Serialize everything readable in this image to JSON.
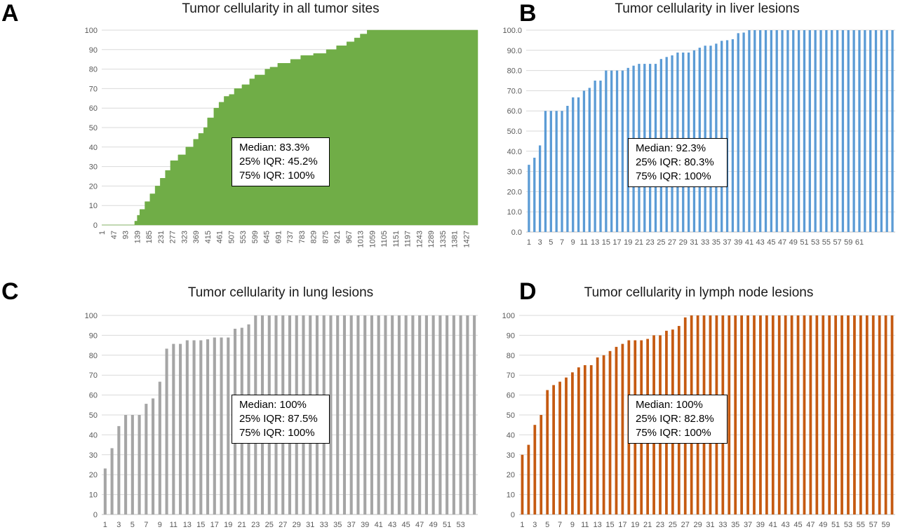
{
  "panels": {
    "a": {
      "letter": "A",
      "stats": {
        "median": "Median: 83.3%",
        "q25": "25% IQR: 45.2%",
        "q75": "75% IQR: 100%"
      }
    },
    "b": {
      "letter": "B",
      "stats": {
        "median": "Median: 92.3%",
        "q25": "25% IQR: 80.3%",
        "q75": "75% IQR: 100%"
      }
    },
    "c": {
      "letter": "C",
      "stats": {
        "median": "Median: 100%",
        "q25": "25% IQR: 87.5%",
        "q75": "75% IQR: 100%"
      }
    },
    "d": {
      "letter": "D",
      "stats": {
        "median": "Median: 100%",
        "q25": "25% IQR: 82.8%",
        "q75": "75% IQR: 100%"
      }
    }
  },
  "chart_data": [
    {
      "type": "area",
      "title": "Tumor cellularity in all tumor sites",
      "xlabel": "",
      "ylabel": "",
      "ylim": [
        0,
        100
      ],
      "y_ticks": [
        0,
        10,
        20,
        30,
        40,
        50,
        60,
        70,
        80,
        90,
        100
      ],
      "y_tick_labels": [
        "0",
        "10",
        "20",
        "30",
        "40",
        "50",
        "60",
        "70",
        "80",
        "90",
        "100"
      ],
      "x_range": [
        1,
        1473
      ],
      "x_tick_labels": [
        "1",
        "47",
        "93",
        "139",
        "185",
        "231",
        "277",
        "323",
        "369",
        "415",
        "461",
        "507",
        "553",
        "599",
        "645",
        "691",
        "737",
        "783",
        "829",
        "875",
        "921",
        "967",
        "1013",
        "1059",
        "1105",
        "1151",
        "1197",
        "1243",
        "1289",
        "1335",
        "1381",
        "1427"
      ],
      "color": "#70ad47",
      "grid": true,
      "series": [
        {
          "x": [
            1,
            125,
            130,
            140,
            150,
            170,
            190,
            210,
            230,
            250,
            270,
            300,
            330,
            360,
            380,
            400,
            415,
            440,
            460,
            480,
            500,
            520,
            550,
            580,
            600,
            640,
            660,
            690,
            740,
            780,
            830,
            880,
            920,
            960,
            990,
            1013,
            1040,
            1473
          ],
          "values": [
            0,
            0,
            2,
            5,
            8,
            12,
            16,
            20,
            24,
            28,
            33,
            36,
            40,
            44,
            47,
            50,
            55,
            60,
            63,
            66,
            67,
            70,
            72,
            75,
            77,
            80,
            81,
            83,
            85,
            87,
            88,
            90,
            92,
            94,
            96,
            98,
            100,
            100
          ]
        }
      ]
    },
    {
      "type": "bar",
      "title": "Tumor cellularity in liver lesions",
      "xlabel": "",
      "ylabel": "",
      "ylim": [
        0,
        100
      ],
      "y_ticks": [
        0,
        10,
        20,
        30,
        40,
        50,
        60,
        70,
        80,
        90,
        100
      ],
      "y_tick_labels": [
        "0.0",
        "10.0",
        "20.0",
        "30.0",
        "40.0",
        "50.0",
        "60.0",
        "70.0",
        "80.0",
        "90.0",
        "100.0"
      ],
      "x_tick_labels": [
        "1",
        "3",
        "5",
        "7",
        "9",
        "11",
        "13",
        "15",
        "17",
        "19",
        "21",
        "23",
        "25",
        "27",
        "29",
        "31",
        "33",
        "35",
        "37",
        "39",
        "41",
        "43",
        "45",
        "47",
        "49",
        "51",
        "53",
        "55",
        "57",
        "59",
        "61"
      ],
      "color": "#5b9bd5",
      "grid": true,
      "values": [
        33.3,
        36.8,
        42.9,
        60,
        60,
        60,
        60,
        62.5,
        66.7,
        66.7,
        70,
        71.4,
        75,
        75,
        80,
        80,
        80,
        80,
        81.3,
        82.4,
        83.3,
        83.3,
        83.3,
        83.3,
        85.7,
        86.7,
        87.5,
        88.9,
        88.9,
        88.9,
        90,
        91.3,
        92.3,
        92.3,
        93.3,
        94.7,
        95,
        95.5,
        98.5,
        98.8,
        100,
        100,
        100,
        100,
        100,
        100,
        100,
        100,
        100,
        100,
        100,
        100,
        100,
        100,
        100,
        100,
        100,
        100,
        100,
        100,
        100,
        100,
        100,
        100,
        100,
        100,
        100
      ]
    },
    {
      "type": "bar",
      "title": "Tumor cellularity in lung lesions",
      "xlabel": "",
      "ylabel": "",
      "ylim": [
        0,
        100
      ],
      "y_ticks": [
        0,
        10,
        20,
        30,
        40,
        50,
        60,
        70,
        80,
        90,
        100
      ],
      "y_tick_labels": [
        "0",
        "10",
        "20",
        "30",
        "40",
        "50",
        "60",
        "70",
        "80",
        "90",
        "100"
      ],
      "x_tick_labels": [
        "1",
        "3",
        "5",
        "7",
        "9",
        "11",
        "13",
        "15",
        "17",
        "19",
        "21",
        "23",
        "25",
        "27",
        "29",
        "31",
        "33",
        "35",
        "37",
        "39",
        "41",
        "43",
        "45",
        "47",
        "49",
        "51",
        "53"
      ],
      "color": "#a5a5a5",
      "grid": true,
      "values": [
        23.1,
        33.3,
        44.4,
        50,
        50,
        50,
        55.6,
        58.3,
        66.7,
        83.3,
        85.7,
        85.7,
        87.5,
        87.5,
        87.5,
        88,
        88.9,
        88.9,
        88.9,
        93.3,
        93.8,
        95.5,
        100,
        100,
        100,
        100,
        100,
        100,
        100,
        100,
        100,
        100,
        100,
        100,
        100,
        100,
        100,
        100,
        100,
        100,
        100,
        100,
        100,
        100,
        100,
        100,
        100,
        100,
        100,
        100,
        100,
        100,
        100,
        100,
        100
      ]
    },
    {
      "type": "bar",
      "title": "Tumor cellularity in lymph node lesions",
      "xlabel": "",
      "ylabel": "",
      "ylim": [
        0,
        100
      ],
      "y_ticks": [
        0,
        10,
        20,
        30,
        40,
        50,
        60,
        70,
        80,
        90,
        100
      ],
      "y_tick_labels": [
        "0",
        "10",
        "20",
        "30",
        "40",
        "50",
        "60",
        "70",
        "80",
        "90",
        "100"
      ],
      "x_tick_labels": [
        "1",
        "3",
        "5",
        "7",
        "9",
        "11",
        "13",
        "15",
        "17",
        "19",
        "21",
        "23",
        "25",
        "27",
        "29",
        "31",
        "33",
        "35",
        "37",
        "39",
        "41",
        "43",
        "45",
        "47",
        "49",
        "51",
        "53",
        "55",
        "57",
        "59"
      ],
      "color": "#c55a11",
      "grid": true,
      "values": [
        30,
        35,
        45,
        50,
        62.5,
        65,
        66.7,
        68.8,
        71.4,
        73.9,
        75,
        75,
        78.9,
        80,
        82.1,
        84.2,
        85.7,
        87.5,
        87.5,
        87.5,
        88.2,
        90,
        90,
        92.3,
        92.9,
        94.7,
        99,
        100,
        100,
        100,
        100,
        100,
        100,
        100,
        100,
        100,
        100,
        100,
        100,
        100,
        100,
        100,
        100,
        100,
        100,
        100,
        100,
        100,
        100,
        100,
        100,
        100,
        100,
        100,
        100,
        100,
        100,
        100,
        100,
        100
      ]
    }
  ]
}
